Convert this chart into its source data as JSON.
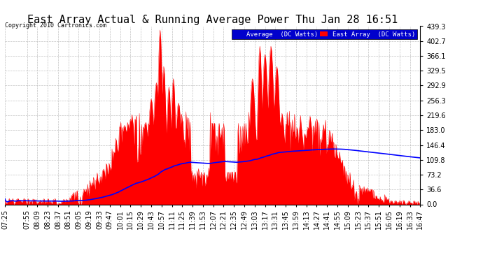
{
  "title": "East Array Actual & Running Average Power Thu Jan 28 16:51",
  "copyright": "Copyright 2010 Cartronics.com",
  "legend_avg": "Average  (DC Watts)",
  "legend_east": "East Array  (DC Watts)",
  "yticks": [
    0.0,
    36.6,
    73.2,
    109.8,
    146.4,
    183.0,
    219.6,
    256.3,
    292.9,
    329.5,
    366.1,
    402.7,
    439.3
  ],
  "ylim": [
    0.0,
    439.3
  ],
  "bg_color": "#ffffff",
  "plot_bg_color": "#ffffff",
  "grid_color": "#bbbbbb",
  "east_array_color": "#ff0000",
  "avg_line_color": "#0000ff",
  "title_color": "#000000",
  "title_fontsize": 11,
  "tick_fontsize": 7,
  "xtick_labels": [
    "07:25",
    "07:55",
    "08:09",
    "08:23",
    "08:37",
    "08:51",
    "09:05",
    "09:19",
    "09:33",
    "09:47",
    "10:01",
    "10:15",
    "10:29",
    "10:43",
    "10:57",
    "11:11",
    "11:25",
    "11:39",
    "11:53",
    "12:07",
    "12:21",
    "12:35",
    "12:49",
    "13:03",
    "13:17",
    "13:31",
    "13:45",
    "13:59",
    "14:13",
    "14:27",
    "14:41",
    "14:55",
    "15:09",
    "15:23",
    "15:37",
    "15:51",
    "16:05",
    "16:19",
    "16:33",
    "16:47"
  ]
}
